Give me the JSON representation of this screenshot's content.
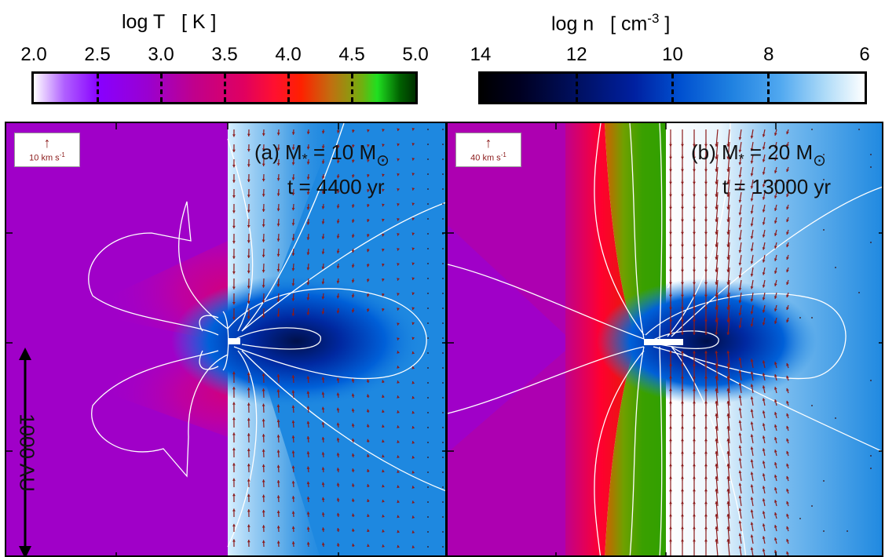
{
  "colorbar_temp": {
    "title_log": "log T",
    "title_unit": "[ K ]",
    "ticks": [
      "2.0",
      "2.5",
      "3.0",
      "3.5",
      "4.0",
      "4.5",
      "5.0"
    ]
  },
  "colorbar_density": {
    "title_log": "log n",
    "title_unit_base": "[ cm",
    "title_unit_exp": "-3",
    "title_unit_close": " ]",
    "ticks": [
      "14",
      "12",
      "10",
      "8",
      "6"
    ]
  },
  "panel_a": {
    "velocity_scale_arrow": "↑",
    "velocity_scale_value": "10 km s",
    "velocity_scale_exp": "-1",
    "label_main": "(a) M",
    "label_star": "*",
    "label_mass": " =  10 M",
    "sun_symbol": "⊙",
    "time": "t = 4400 yr"
  },
  "panel_b": {
    "velocity_scale_arrow": "↑",
    "velocity_scale_value": "40 km s",
    "velocity_scale_exp": "-1",
    "label_main": "(b) M",
    "label_star": "*",
    "label_mass": " =  20 M",
    "sun_symbol": "⊙",
    "time": "t  = 13000 yr"
  },
  "scale_bar": {
    "label": "1000 AU"
  },
  "colors": {
    "temp_cmap": [
      "#ffffff",
      "#8a00ff",
      "#c0008c",
      "#ff0030",
      "#ff2800",
      "#c09000",
      "#20e020",
      "#003000"
    ],
    "density_cmap": [
      "#000000",
      "#00104a",
      "#0030c0",
      "#1e80e0",
      "#80c0f0",
      "#ffffff"
    ],
    "arrow_color": "#8b1a1a"
  }
}
